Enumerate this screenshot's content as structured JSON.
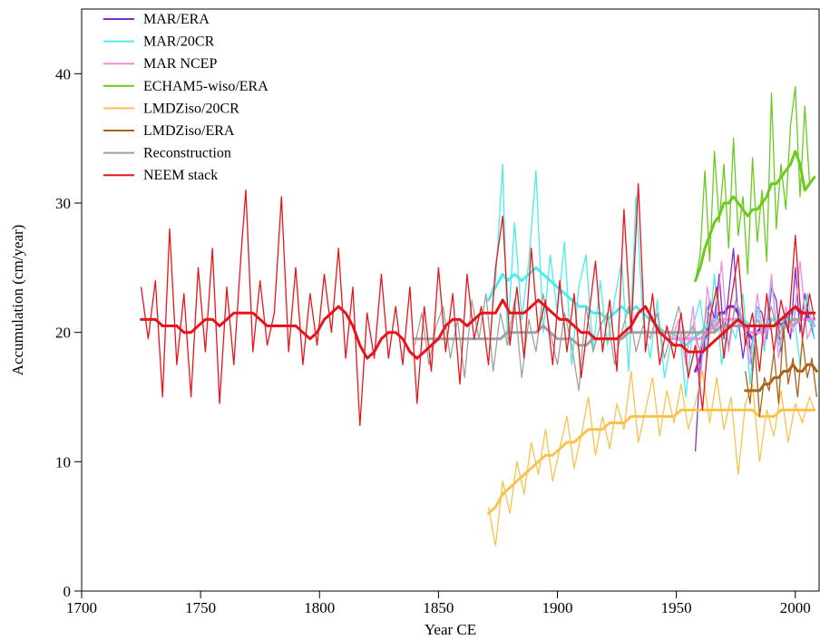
{
  "chart_data": {
    "type": "line",
    "title": "",
    "xlabel": "Year CE",
    "ylabel": "Accumulation (cm/year)",
    "xlim": [
      1700,
      2010
    ],
    "ylim": [
      0,
      45
    ],
    "xticks": [
      1700,
      1750,
      1800,
      1850,
      1900,
      1950,
      2000
    ],
    "xtick_labels": [
      "1700",
      "1750",
      "1800",
      "1850",
      "1900",
      "1950",
      "2000"
    ],
    "yticks": [
      0,
      10,
      20,
      30,
      40
    ],
    "ytick_labels": [
      "0",
      "10",
      "20",
      "30",
      "40"
    ],
    "grid": false,
    "legend_position": "top-left",
    "series": [
      {
        "name": "MAR/ERA",
        "color": "#7B2FD0",
        "x": [
          1958,
          1960,
          1962,
          1964,
          1966,
          1968,
          1970,
          1972,
          1974,
          1976,
          1978,
          1980,
          1982,
          1984,
          1986,
          1988,
          1990,
          1992,
          1994,
          1996,
          1998,
          2000,
          2002,
          2004,
          2006,
          2008
        ],
        "y": [
          10.8,
          17.5,
          19.0,
          22.5,
          21.0,
          24.5,
          19.5,
          23.0,
          26.5,
          21.0,
          18.0,
          20.5,
          17.0,
          22.0,
          21.5,
          19.5,
          23.5,
          22.5,
          18.5,
          21.0,
          19.5,
          25.0,
          20.0,
          23.0,
          21.0,
          19.5
        ],
        "smooth": [
          17.0,
          18.0,
          19.5,
          20.5,
          21.0,
          21.5,
          21.5,
          22.0,
          22.0,
          21.5,
          20.5,
          20.0,
          19.5,
          20.0,
          20.5,
          20.5,
          21.0,
          21.0,
          20.5,
          21.0,
          21.5,
          22.0,
          21.5,
          21.5,
          21.0,
          20.5
        ]
      },
      {
        "name": "MAR/20CR",
        "color": "#4DEBEB",
        "x": [
          1871,
          1874,
          1877,
          1879,
          1882,
          1885,
          1888,
          1891,
          1894,
          1897,
          1900,
          1903,
          1906,
          1909,
          1912,
          1915,
          1918,
          1921,
          1924,
          1927,
          1930,
          1933,
          1936,
          1939,
          1942,
          1945,
          1948,
          1951,
          1954,
          1957,
          1960,
          1963,
          1966,
          1969,
          1972,
          1975,
          1978,
          1981,
          1984,
          1987,
          1990,
          1993,
          1996,
          1999,
          2002,
          2005,
          2008
        ],
        "y": [
          22.5,
          24.0,
          33.0,
          19.5,
          28.5,
          21.0,
          25.5,
          32.5,
          20.0,
          26.0,
          21.5,
          27.0,
          17.5,
          23.5,
          26.0,
          18.5,
          24.0,
          19.0,
          22.5,
          25.5,
          17.0,
          30.5,
          21.0,
          18.0,
          22.5,
          16.5,
          19.5,
          21.0,
          15.0,
          20.5,
          22.5,
          18.0,
          24.5,
          17.5,
          21.0,
          19.5,
          23.0,
          16.0,
          22.0,
          18.5,
          24.0,
          19.0,
          20.5,
          22.0,
          17.5,
          23.0,
          19.5
        ],
        "smooth": [
          22.5,
          23.5,
          24.5,
          24.0,
          24.5,
          24.0,
          24.5,
          25.0,
          24.5,
          24.0,
          23.5,
          23.0,
          22.5,
          22.0,
          22.0,
          21.5,
          21.5,
          21.0,
          21.5,
          22.0,
          21.5,
          22.0,
          21.5,
          21.0,
          20.5,
          20.0,
          20.0,
          19.5,
          19.0,
          19.5,
          20.0,
          20.5,
          21.0,
          21.0,
          21.0,
          21.0,
          21.0,
          20.5,
          20.5,
          20.5,
          21.0,
          21.0,
          21.0,
          21.0,
          21.0,
          21.0,
          20.5
        ]
      },
      {
        "name": "MAR NCEP",
        "color": "#F08CE6",
        "x": [
          1948,
          1951,
          1954,
          1957,
          1960,
          1963,
          1966,
          1969,
          1972,
          1975,
          1978,
          1981,
          1984,
          1987,
          1990,
          1993,
          1996,
          1999,
          2002,
          2005,
          2008
        ],
        "y": [
          19.5,
          21.0,
          17.5,
          22.0,
          16.0,
          23.5,
          20.0,
          25.5,
          18.5,
          22.5,
          21.0,
          17.5,
          23.0,
          19.0,
          24.5,
          18.0,
          22.0,
          20.0,
          25.5,
          19.5,
          21.0
        ],
        "smooth": [
          19.5,
          19.5,
          19.5,
          19.5,
          19.5,
          20.0,
          20.5,
          21.0,
          21.0,
          21.0,
          20.5,
          20.0,
          20.0,
          20.0,
          20.5,
          20.5,
          20.5,
          20.5,
          21.0,
          21.0,
          21.0
        ]
      },
      {
        "name": "ECHAM5-wiso/ERA",
        "color": "#6CC91E",
        "x": [
          1958,
          1960,
          1962,
          1964,
          1966,
          1968,
          1970,
          1972,
          1974,
          1976,
          1978,
          1980,
          1982,
          1984,
          1986,
          1988,
          1990,
          1992,
          1994,
          1996,
          1998,
          2000,
          2002,
          2004,
          2006,
          2008
        ],
        "y": [
          24.0,
          26.0,
          32.5,
          25.5,
          34.0,
          28.5,
          33.0,
          26.5,
          35.0,
          27.5,
          30.5,
          24.5,
          33.5,
          27.0,
          31.0,
          25.5,
          38.5,
          28.0,
          33.0,
          29.5,
          36.0,
          39.0,
          30.5,
          37.5,
          31.5,
          32.0
        ],
        "smooth": [
          24.0,
          25.0,
          26.5,
          27.5,
          28.5,
          29.0,
          30.0,
          30.0,
          30.5,
          30.0,
          29.5,
          29.0,
          29.5,
          29.5,
          30.0,
          30.5,
          31.5,
          31.5,
          32.0,
          32.5,
          33.0,
          34.0,
          33.0,
          31.0,
          31.5,
          32.0
        ]
      },
      {
        "name": "LMDZiso/20CR",
        "color": "#F9C24E",
        "x": [
          1871,
          1874,
          1877,
          1880,
          1883,
          1886,
          1889,
          1892,
          1895,
          1898,
          1901,
          1904,
          1907,
          1910,
          1913,
          1916,
          1919,
          1922,
          1925,
          1928,
          1931,
          1934,
          1937,
          1940,
          1943,
          1946,
          1949,
          1952,
          1955,
          1958,
          1961,
          1964,
          1967,
          1970,
          1973,
          1976,
          1979,
          1982,
          1985,
          1988,
          1991,
          1994,
          1997,
          2000,
          2003,
          2006,
          2008
        ],
        "y": [
          6.5,
          3.5,
          8.5,
          6.0,
          10.0,
          7.5,
          11.5,
          9.0,
          12.5,
          8.5,
          11.0,
          13.5,
          9.5,
          12.0,
          15.0,
          10.5,
          13.5,
          11.0,
          14.5,
          12.5,
          17.0,
          11.5,
          14.0,
          16.5,
          12.0,
          15.5,
          13.0,
          16.0,
          12.5,
          14.5,
          17.0,
          13.0,
          16.5,
          12.5,
          15.0,
          9.0,
          14.5,
          16.0,
          10.0,
          14.0,
          12.0,
          15.5,
          11.5,
          14.5,
          13.0,
          15.0,
          14.0
        ],
        "smooth": [
          6.0,
          6.5,
          7.5,
          8.0,
          8.5,
          9.0,
          9.5,
          10.0,
          10.5,
          10.5,
          11.0,
          11.5,
          11.5,
          12.0,
          12.5,
          12.5,
          12.5,
          13.0,
          13.0,
          13.0,
          13.5,
          13.5,
          13.5,
          13.5,
          13.5,
          13.5,
          13.5,
          14.0,
          14.0,
          14.0,
          14.0,
          14.0,
          14.0,
          14.0,
          14.0,
          14.0,
          14.0,
          14.0,
          13.5,
          13.5,
          13.5,
          14.0,
          14.0,
          14.0,
          14.0,
          14.0,
          14.0
        ]
      },
      {
        "name": "LMDZiso/ERA",
        "color": "#A8651C",
        "x": [
          1979,
          1981,
          1983,
          1985,
          1987,
          1989,
          1991,
          1993,
          1995,
          1997,
          1999,
          2001,
          2003,
          2005,
          2007,
          2009
        ],
        "y": [
          17.0,
          14.5,
          19.0,
          13.5,
          16.5,
          15.5,
          18.5,
          14.5,
          20.5,
          16.0,
          18.0,
          15.0,
          19.5,
          16.5,
          18.0,
          15.0
        ],
        "smooth": [
          15.5,
          15.5,
          15.5,
          15.5,
          16.0,
          16.0,
          16.5,
          16.5,
          17.0,
          17.0,
          17.5,
          17.0,
          17.0,
          17.5,
          17.5,
          17.0
        ]
      },
      {
        "name": "Reconstruction",
        "color": "#A0A0A0",
        "x": [
          1840,
          1843,
          1846,
          1849,
          1852,
          1855,
          1858,
          1861,
          1864,
          1867,
          1870,
          1873,
          1876,
          1879,
          1882,
          1885,
          1888,
          1891,
          1894,
          1897,
          1900,
          1903,
          1906,
          1909,
          1912,
          1915,
          1918,
          1921,
          1924,
          1927,
          1930,
          1933,
          1936,
          1939,
          1942,
          1945,
          1948,
          1951,
          1954,
          1957,
          1960,
          1963,
          1966,
          1969,
          1972,
          1975,
          1978,
          1981,
          1984,
          1987,
          1990,
          1993,
          1996,
          1999,
          2002
        ],
        "y": [
          19.0,
          21.5,
          17.5,
          20.5,
          22.0,
          18.0,
          21.0,
          16.5,
          22.5,
          19.5,
          23.0,
          17.0,
          21.5,
          19.0,
          22.5,
          16.5,
          21.0,
          18.5,
          23.0,
          20.0,
          17.5,
          21.5,
          19.0,
          15.5,
          22.0,
          18.5,
          20.5,
          21.5,
          17.5,
          20.0,
          22.0,
          18.5,
          20.5,
          19.5,
          21.5,
          18.0,
          20.0,
          22.0,
          19.5,
          20.5,
          18.5,
          22.0,
          20.0,
          21.5,
          19.0,
          22.5,
          20.5,
          18.5,
          21.0,
          20.0,
          22.0,
          19.5,
          21.5,
          20.5,
          21.0
        ],
        "smooth": [
          19.5,
          19.5,
          19.5,
          19.5,
          19.5,
          19.5,
          19.5,
          19.5,
          19.5,
          19.5,
          19.5,
          19.5,
          19.5,
          20.0,
          20.0,
          20.0,
          20.0,
          20.0,
          20.5,
          20.0,
          19.5,
          19.5,
          19.5,
          19.0,
          19.0,
          19.5,
          19.5,
          19.5,
          19.5,
          19.5,
          20.0,
          20.0,
          20.0,
          20.0,
          20.0,
          20.0,
          20.0,
          20.0,
          20.0,
          20.0,
          20.0,
          20.0,
          20.0,
          20.5,
          20.5,
          20.5,
          20.5,
          20.5,
          20.5,
          20.5,
          20.5,
          20.5,
          20.5,
          21.0,
          21.0
        ]
      },
      {
        "name": "NEEM stack",
        "color": "#E8141B",
        "x": [
          1725,
          1728,
          1731,
          1734,
          1737,
          1740,
          1743,
          1746,
          1749,
          1752,
          1755,
          1758,
          1761,
          1764,
          1767,
          1769,
          1772,
          1775,
          1778,
          1781,
          1784,
          1787,
          1790,
          1793,
          1796,
          1799,
          1802,
          1805,
          1808,
          1811,
          1814,
          1817,
          1820,
          1823,
          1826,
          1829,
          1832,
          1835,
          1838,
          1841,
          1844,
          1847,
          1850,
          1853,
          1856,
          1859,
          1862,
          1865,
          1868,
          1871,
          1874,
          1877,
          1880,
          1883,
          1886,
          1889,
          1892,
          1895,
          1898,
          1901,
          1904,
          1907,
          1910,
          1913,
          1916,
          1919,
          1922,
          1925,
          1928,
          1931,
          1934,
          1937,
          1940,
          1943,
          1946,
          1949,
          1952,
          1955,
          1958,
          1961,
          1964,
          1967,
          1970,
          1973,
          1976,
          1979,
          1982,
          1985,
          1988,
          1991,
          1994,
          1997,
          2000,
          2003,
          2006,
          2008
        ],
        "y": [
          23.5,
          19.5,
          24.0,
          15.0,
          28.0,
          17.5,
          23.0,
          15.0,
          25.0,
          18.5,
          26.5,
          14.5,
          23.5,
          17.5,
          26.0,
          31.0,
          18.5,
          24.0,
          19.0,
          21.5,
          30.5,
          18.5,
          25.0,
          17.5,
          23.0,
          19.0,
          24.5,
          20.0,
          26.5,
          18.0,
          23.5,
          12.8,
          21.5,
          18.0,
          24.5,
          18.0,
          22.0,
          17.5,
          23.5,
          14.5,
          22.0,
          17.0,
          25.0,
          18.5,
          23.0,
          16.0,
          24.5,
          19.5,
          22.0,
          17.5,
          25.0,
          29.0,
          19.0,
          23.5,
          18.0,
          26.5,
          20.0,
          22.5,
          17.5,
          24.0,
          18.5,
          23.0,
          16.5,
          21.0,
          25.5,
          18.5,
          22.5,
          17.0,
          29.5,
          20.0,
          31.5,
          18.5,
          23.0,
          17.5,
          20.5,
          18.0,
          21.5,
          16.5,
          19.0,
          14.0,
          21.0,
          23.5,
          18.0,
          22.5,
          26.0,
          19.0,
          21.5,
          17.0,
          23.0,
          18.5,
          22.5,
          20.0,
          27.5,
          19.5,
          23.0,
          21.0
        ],
        "smooth": [
          21.0,
          21.0,
          21.0,
          20.5,
          20.5,
          20.5,
          20.0,
          20.0,
          20.5,
          21.0,
          21.0,
          20.5,
          21.0,
          21.5,
          21.5,
          21.5,
          21.5,
          21.0,
          20.5,
          20.5,
          20.5,
          20.5,
          20.5,
          20.0,
          19.5,
          20.0,
          21.0,
          21.5,
          22.0,
          21.5,
          20.5,
          19.0,
          18.0,
          18.5,
          19.5,
          20.0,
          20.0,
          19.5,
          18.5,
          18.0,
          18.5,
          19.0,
          19.5,
          20.5,
          21.0,
          21.0,
          20.5,
          21.0,
          21.5,
          21.5,
          21.5,
          22.5,
          21.5,
          21.5,
          21.5,
          22.0,
          22.5,
          22.0,
          21.5,
          21.0,
          21.0,
          20.5,
          20.0,
          20.0,
          19.5,
          19.5,
          19.5,
          19.5,
          20.0,
          20.5,
          21.5,
          22.0,
          21.0,
          20.0,
          19.5,
          19.0,
          19.0,
          18.5,
          18.5,
          18.5,
          19.0,
          19.5,
          20.0,
          20.5,
          21.0,
          20.5,
          20.5,
          20.5,
          20.5,
          20.5,
          21.0,
          21.5,
          22.0,
          21.5,
          21.5,
          21.5
        ]
      }
    ]
  }
}
